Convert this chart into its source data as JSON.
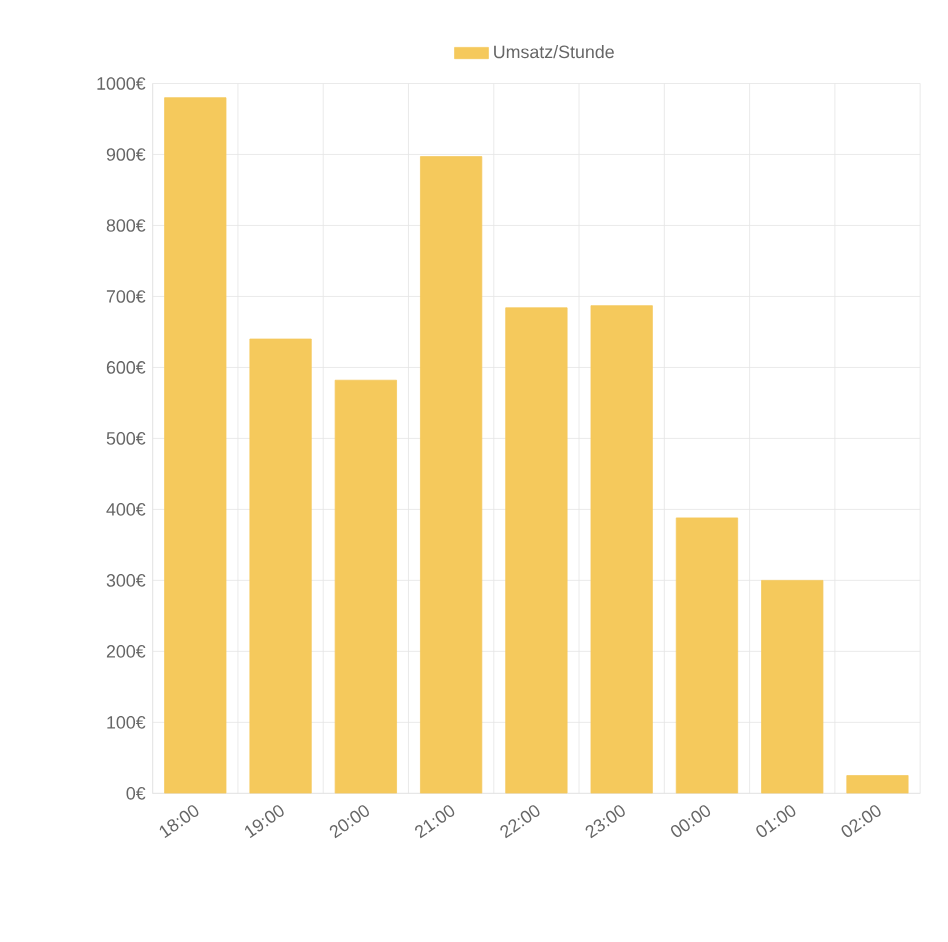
{
  "chart_data": {
    "type": "bar",
    "categories": [
      "18:00",
      "19:00",
      "20:00",
      "21:00",
      "22:00",
      "23:00",
      "00:00",
      "01:00",
      "02:00"
    ],
    "series": [
      {
        "name": "Umsatz/Stunde",
        "color": "#f5c95c",
        "values": [
          980,
          640,
          582,
          897,
          684,
          687,
          388,
          300,
          25
        ]
      }
    ],
    "ylim": [
      0,
      1000
    ],
    "yticks": [
      {
        "value": 0,
        "label": "0€"
      },
      {
        "value": 100,
        "label": "100€"
      },
      {
        "value": 200,
        "label": "200€"
      },
      {
        "value": 300,
        "label": "300€"
      },
      {
        "value": 400,
        "label": "400€"
      },
      {
        "value": 500,
        "label": "500€"
      },
      {
        "value": 600,
        "label": "600€"
      },
      {
        "value": 700,
        "label": "700€"
      },
      {
        "value": 800,
        "label": "800€"
      },
      {
        "value": 900,
        "label": "900€"
      },
      {
        "value": 1000,
        "label": "1000€"
      }
    ],
    "grid": true,
    "legend": "top"
  }
}
